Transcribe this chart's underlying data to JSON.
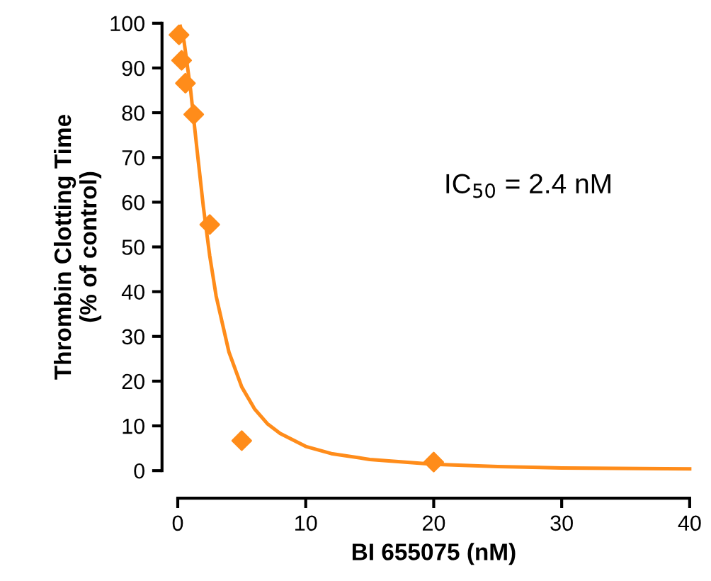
{
  "chart_data": {
    "type": "scatter",
    "xlabel": "BI 655075 (nM)",
    "ylabel": "Thrombin Clotting Time\n(% of control)",
    "xlim": [
      0,
      40
    ],
    "xticks": [
      0,
      10,
      20,
      30,
      40
    ],
    "ylim": [
      0,
      100
    ],
    "yticks": [
      0,
      10,
      20,
      30,
      40,
      50,
      60,
      70,
      80,
      90,
      100
    ],
    "grid": false,
    "legend": false,
    "marker": "diamond",
    "annotations": [
      "IC$_{50}$ = 2.4 nM"
    ],
    "series": [
      {
        "color": "#ff8c1a",
        "x": [
          0.1,
          0.3,
          0.6,
          1.25,
          2.5,
          5,
          20
        ],
        "values": [
          97.4,
          91.7,
          86.6,
          79.6,
          55,
          6.7,
          1.9
        ]
      },
      {
        "type": "line",
        "color": "#ff8c1a",
        "marker": "none",
        "line_style": "solid",
        "x": [
          0.2,
          0.5,
          1,
          1.5,
          2,
          2.5,
          3,
          4,
          5,
          6,
          7,
          8,
          10,
          12,
          15,
          20,
          25,
          30,
          40
        ],
        "values": [
          99.3,
          95.8,
          85.2,
          71.9,
          59.0,
          48.0,
          39.0,
          26.5,
          18.7,
          13.8,
          10.5,
          8.3,
          5.4,
          3.8,
          2.5,
          1.4,
          0.9,
          0.6,
          0.4
        ]
      }
    ]
  }
}
